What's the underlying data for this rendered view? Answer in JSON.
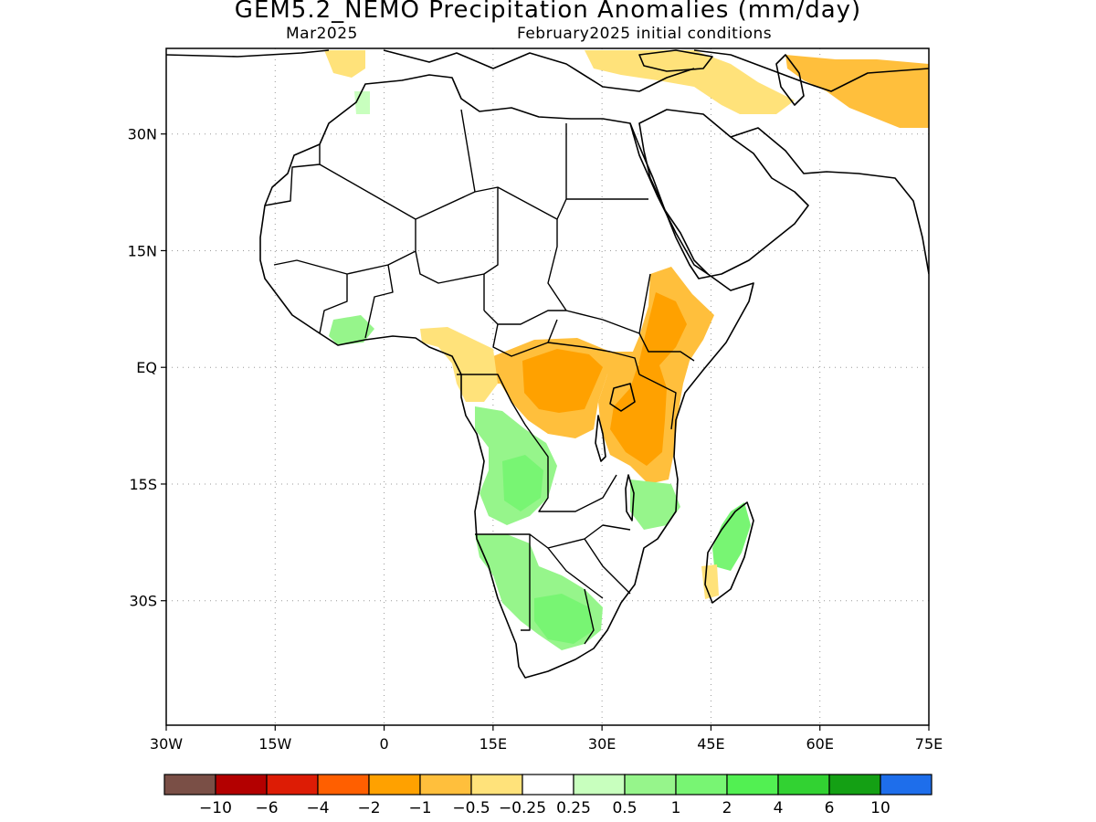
{
  "title": "GEM5.2_NEMO Precipitation Anomalies (mm/day)",
  "subtitle_left": "Mar2025",
  "subtitle_right": "February2025 initial conditions",
  "map": {
    "lon_range": [
      -30,
      75
    ],
    "lat_range": [
      -46,
      41
    ],
    "x_ticks": [
      {
        "value": -30,
        "label": "30W"
      },
      {
        "value": -15,
        "label": "15W"
      },
      {
        "value": 0,
        "label": "0"
      },
      {
        "value": 15,
        "label": "15E"
      },
      {
        "value": 30,
        "label": "30E"
      },
      {
        "value": 45,
        "label": "45E"
      },
      {
        "value": 60,
        "label": "60E"
      },
      {
        "value": 75,
        "label": "75E"
      }
    ],
    "y_ticks": [
      {
        "value": 30,
        "label": "30N"
      },
      {
        "value": 15,
        "label": "15N"
      },
      {
        "value": 0,
        "label": "EQ"
      },
      {
        "value": -15,
        "label": "15S"
      },
      {
        "value": -30,
        "label": "30S"
      }
    ],
    "gridlines": true,
    "land_color": "#ffffff",
    "coastline_color": "#000000"
  },
  "colorbar": {
    "colors": [
      "#7a4f46",
      "#b30000",
      "#dd1c05",
      "#ff5f00",
      "#ffa100",
      "#ffbf3c",
      "#ffe27a",
      "#ffffff",
      "#c8ffbe",
      "#96f58b",
      "#78f573",
      "#52f052",
      "#32d232",
      "#14a014",
      "#1e6eeb"
    ],
    "labels": [
      "−10",
      "−6",
      "−4",
      "−2",
      "−1",
      "−0.5",
      "−0.25",
      "0.25",
      "0.5",
      "1",
      "2",
      "4",
      "6",
      "10"
    ]
  },
  "anomaly_regions": [
    {
      "name": "east-africa-dry",
      "color": "#ffbf3c"
    },
    {
      "name": "east-africa-core-dry",
      "color": "#ffa100"
    },
    {
      "name": "congo-dry",
      "color": "#ffbf3c"
    },
    {
      "name": "congo-core-dry",
      "color": "#ffa100"
    },
    {
      "name": "gulf-guinea-dry",
      "color": "#ffe27a"
    },
    {
      "name": "middle-east-dry",
      "color": "#ffe27a"
    },
    {
      "name": "iran-dry",
      "color": "#ffbf3c"
    },
    {
      "name": "angola-wet",
      "color": "#96f58b"
    },
    {
      "name": "angola-core-wet",
      "color": "#78f573"
    },
    {
      "name": "southern-africa-wet",
      "color": "#96f58b"
    },
    {
      "name": "southern-africa-core-wet",
      "color": "#78f573"
    },
    {
      "name": "madagascar-wet",
      "color": "#78f573"
    },
    {
      "name": "mozambique-wet",
      "color": "#96f58b"
    },
    {
      "name": "west-africa-wet",
      "color": "#96f58b"
    }
  ]
}
